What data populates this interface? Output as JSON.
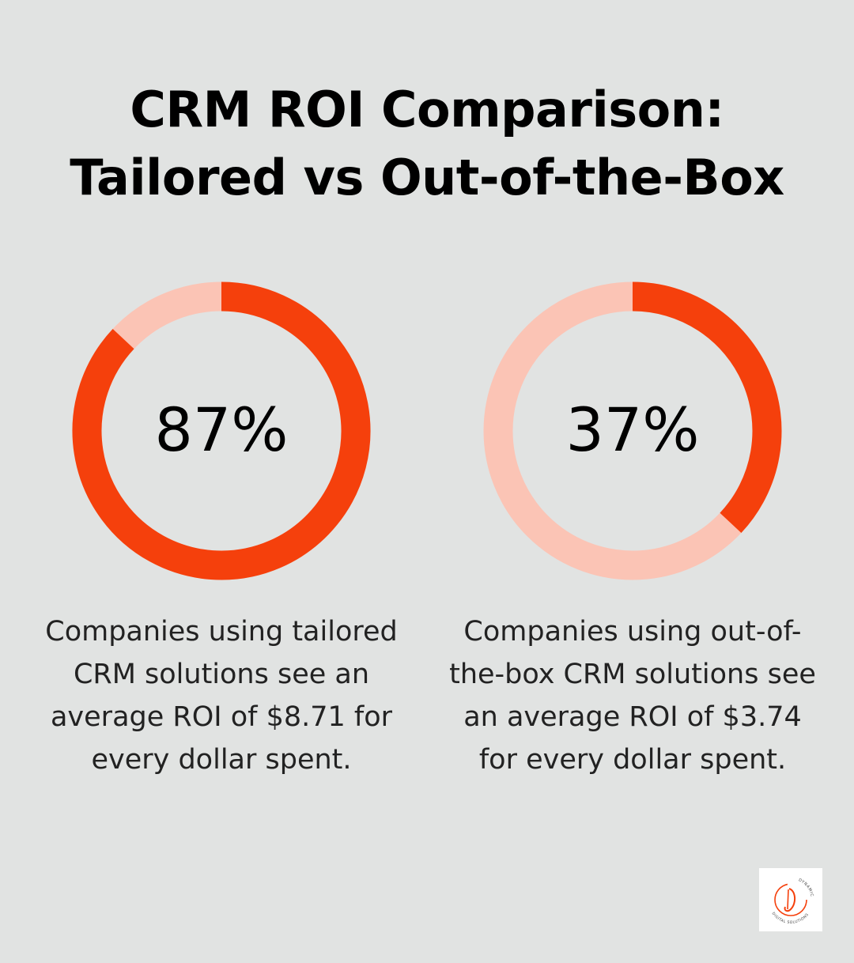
{
  "title_lines": [
    "CRM ROI Comparison:",
    "Tailored vs Out-of-the-Box"
  ],
  "colors": {
    "background": "#e1e3e2",
    "accent": "#f5400c",
    "track": "#fbc4b5",
    "text": "#000000"
  },
  "chart_data": [
    {
      "type": "pie",
      "style": "donut",
      "value": 87,
      "max": 100,
      "label": "87%",
      "caption_lines": [
        "Companies using tailored",
        "CRM solutions see an",
        "average ROI of $8.71 for",
        "every dollar spent."
      ]
    },
    {
      "type": "pie",
      "style": "donut",
      "value": 37,
      "max": 100,
      "label": "37%",
      "caption_lines": [
        "Companies using out-of-",
        "the-box CRM solutions see",
        "an average ROI of $3.74",
        "for every dollar spent."
      ]
    }
  ],
  "logo": {
    "icon": "dynamic-digital-solutions-logo-icon",
    "text_top": "DYNAMIC",
    "text_bottom": "DIGITAL SOLUTIONS"
  }
}
